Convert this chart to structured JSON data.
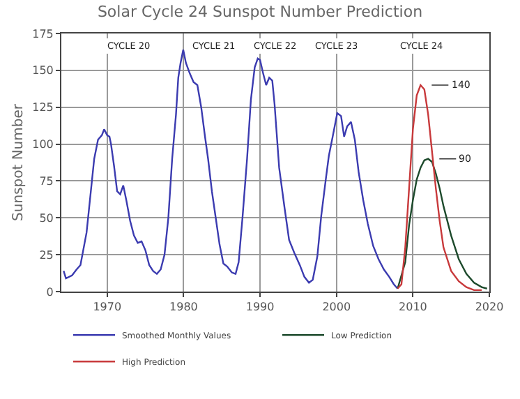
{
  "chart_data": {
    "type": "line",
    "title": "Solar Cycle 24 Sunspot Number Prediction",
    "ylabel": "Sunspot Number",
    "xlim": [
      1964,
      2020
    ],
    "xticks": [
      1970,
      1980,
      1990,
      2000,
      2010,
      2020
    ],
    "ylim": [
      0,
      175
    ],
    "yticks": [
      0,
      25,
      50,
      75,
      100,
      125,
      150,
      175
    ],
    "grid": true,
    "legend": "bottom",
    "annotations": [
      "CYCLE 20",
      "CYCLE 21",
      "CYCLE 22",
      "CYCLE 23",
      "CYCLE 24",
      {
        "text": "140",
        "x": 2011,
        "y": 140
      },
      {
        "text": "90",
        "x": 2012,
        "y": 90
      }
    ],
    "series": [
      {
        "name": "Smoothed Monthly Values",
        "color": "#3b3bb0",
        "x": [
          1964.3,
          1964.6,
          1965.4,
          1966,
          1966.5,
          1967.3,
          1967.8,
          1968.3,
          1968.8,
          1969.3,
          1969.6,
          1970,
          1970.3,
          1970.5,
          1970.9,
          1971.3,
          1971.7,
          1972.1,
          1972.5,
          1973,
          1973.5,
          1974,
          1974.5,
          1975,
          1975.5,
          1976,
          1976.5,
          1977,
          1977.5,
          1978,
          1978.5,
          1979,
          1979.3,
          1979.6,
          1979.95,
          1980.3,
          1980.8,
          1981.3,
          1981.8,
          1982.3,
          1982.8,
          1983.2,
          1983.7,
          1984.2,
          1984.7,
          1985.2,
          1985.7,
          1986.3,
          1986.8,
          1987.2,
          1987.7,
          1988.3,
          1988.8,
          1989.3,
          1989.7,
          1990,
          1990.4,
          1990.8,
          1991.2,
          1991.6,
          1991.9,
          1992.5,
          1993.2,
          1993.8,
          1994.5,
          1995.2,
          1995.8,
          1996.4,
          1996.9,
          1997.5,
          1998,
          1998.6,
          1999,
          1999.5,
          2000.1,
          2000.6,
          2001,
          2001.4,
          2001.9,
          2002.4,
          2002.9,
          2003.5,
          2004.1,
          2004.8,
          2005.5,
          2006.2,
          2006.9,
          2007.5,
          2008
        ],
        "values": [
          14,
          9,
          11,
          15,
          18,
          40,
          65,
          90,
          103,
          106,
          110,
          106,
          105,
          100,
          85,
          68,
          66,
          72,
          62,
          48,
          38,
          33,
          34,
          28,
          18,
          14,
          12,
          15,
          25,
          50,
          90,
          120,
          145,
          155,
          164,
          155,
          148,
          142,
          140,
          125,
          105,
          90,
          68,
          50,
          32,
          19,
          17,
          13,
          12,
          20,
          50,
          90,
          130,
          152,
          158,
          157,
          148,
          140,
          145,
          143,
          127,
          84,
          57,
          35,
          26,
          18,
          10,
          6,
          8,
          24,
          51,
          76,
          92,
          105,
          121,
          119,
          105,
          112,
          115,
          103,
          81,
          62,
          46,
          31,
          22,
          15,
          10,
          5,
          2
        ]
      },
      {
        "name": "Low Prediction",
        "color": "#1d4a2c",
        "x": [
          2008,
          2009,
          2009.5,
          2010,
          2010.5,
          2011,
          2011.5,
          2012,
          2012.5,
          2013,
          2013.5,
          2014,
          2015,
          2016,
          2017,
          2018,
          2019,
          2019.7
        ],
        "values": [
          2,
          20,
          45,
          62,
          76,
          84,
          89,
          90,
          88,
          80,
          70,
          58,
          38,
          22,
          12,
          6,
          3,
          2
        ]
      },
      {
        "name": "High Prediction",
        "color": "#c8393b",
        "x": [
          2008,
          2008.5,
          2009,
          2009.5,
          2010,
          2010.5,
          2011,
          2011.5,
          2012,
          2012.5,
          2013,
          2013.5,
          2014,
          2015,
          2016,
          2017,
          2018,
          2019
        ],
        "values": [
          2,
          5,
          30,
          70,
          110,
          133,
          140,
          137,
          120,
          95,
          70,
          48,
          30,
          14,
          7,
          3,
          1,
          1
        ]
      }
    ]
  }
}
